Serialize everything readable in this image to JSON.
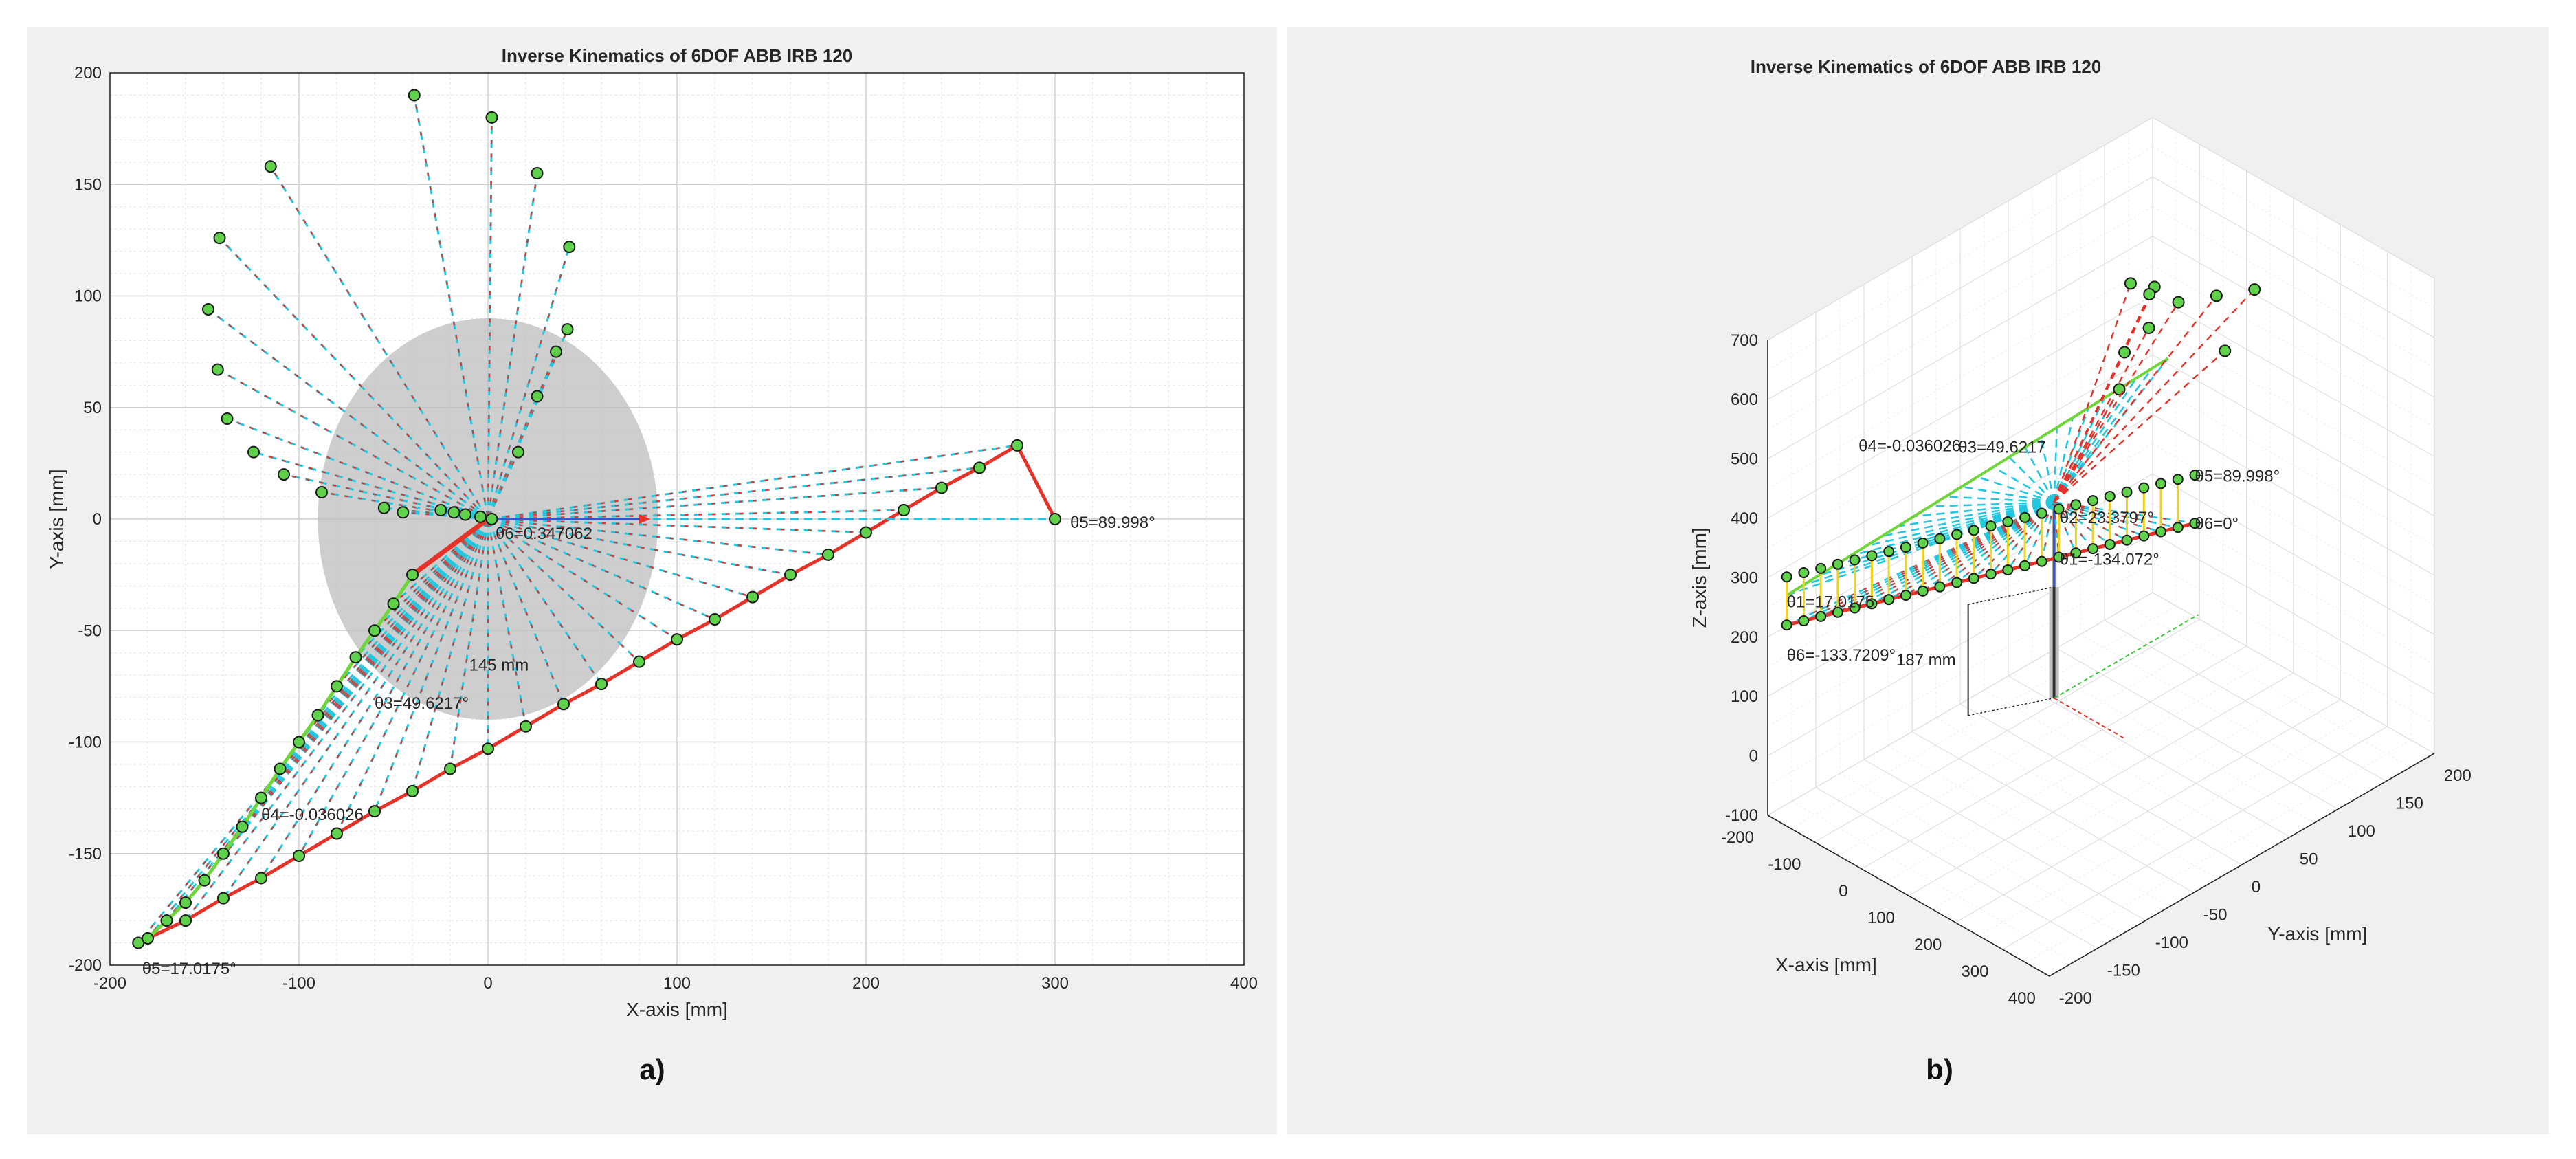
{
  "chart_data": [
    {
      "type": "scatter",
      "panel_label": "a)",
      "title": "Inverse Kinematics of 6DOF ABB IRB 120",
      "xlabel": "X-axis [mm]",
      "ylabel": "Y-axis [mm]",
      "xlim": [
        -200,
        400
      ],
      "ylim": [
        -200,
        200
      ],
      "xticks": [
        -200,
        -100,
        0,
        100,
        200,
        300,
        400
      ],
      "yticks": [
        -200,
        -150,
        -100,
        -50,
        0,
        50,
        100,
        150,
        200
      ],
      "grid": true,
      "base_disk": {
        "center": [
          0,
          0
        ],
        "radius": 90,
        "label": "145 mm"
      },
      "series": [
        {
          "name": "",
          "color": "#e6332a",
          "x": [
            -185,
            -160,
            -140,
            -120,
            -100,
            -80,
            -60,
            -40,
            -20,
            0,
            20,
            40,
            60,
            80,
            100,
            120,
            140,
            160,
            180,
            200,
            220,
            240,
            260,
            280,
            300
          ],
          "y": [
            -190,
            -180,
            -170,
            -161,
            -151,
            -141,
            -131,
            -122,
            -112,
            -103,
            -93,
            -83,
            -74,
            -64,
            -54,
            -45,
            -35,
            -25,
            -16,
            -6,
            4,
            14,
            23,
            33,
            0
          ]
        },
        {
          "name": "",
          "color": "#22c7e0",
          "x": [
            -39,
            2,
            26,
            43,
            42,
            36,
            26,
            16,
            -115,
            -142,
            -148,
            -143,
            -138,
            -124,
            -108,
            -88,
            -55,
            -45,
            -25,
            -18,
            -12,
            -4,
            2
          ],
          "y": [
            190,
            180,
            155,
            122,
            85,
            75,
            55,
            30,
            158,
            126,
            94,
            67,
            45,
            30,
            20,
            12,
            5,
            3,
            4,
            3,
            2,
            1,
            0
          ]
        },
        {
          "name": "",
          "color": "#6fd63a",
          "x": [
            -180,
            -170,
            -160,
            -150,
            -140,
            -130,
            -120,
            -110,
            -100,
            -90,
            -80,
            -70,
            -60,
            -50,
            -40
          ],
          "y": [
            -188,
            -180,
            -172,
            -162,
            -150,
            -138,
            -125,
            -112,
            -100,
            -88,
            -75,
            -62,
            -50,
            -38,
            -25
          ]
        }
      ],
      "annotations": [
        "θ5=89.998°",
        "θ5=17.0175°",
        "θ3=49.6217°",
        "θ4=-0.036026",
        "θ6=0.347062"
      ]
    },
    {
      "type": "scatter",
      "panel_label": "b)",
      "title": "Inverse Kinematics of 6DOF ABB IRB 120",
      "xlabel": "X-axis [mm]",
      "ylabel": "Y-axis [mm]",
      "zlabel": "Z-axis [mm]",
      "xlim": [
        -200,
        400
      ],
      "ylim": [
        -200,
        200
      ],
      "zlim": [
        -100,
        700
      ],
      "xticks": [
        -200,
        -100,
        0,
        100,
        200,
        300,
        400
      ],
      "yticks": [
        -200,
        -150,
        -100,
        -50,
        0,
        50,
        100,
        150,
        200
      ],
      "zticks": [
        -100,
        0,
        100,
        200,
        300,
        400,
        500,
        600,
        700
      ],
      "grid": true,
      "base_height_label": "187 mm",
      "annotations": [
        "θ2=23.3797°",
        "θ1=-134.072°",
        "θ5=89.998°",
        "θ6=0°",
        "θ4=-0.036026",
        "θ3=49.6217",
        "θ1=17.0175",
        "θ6=-133.7209°"
      ]
    }
  ]
}
